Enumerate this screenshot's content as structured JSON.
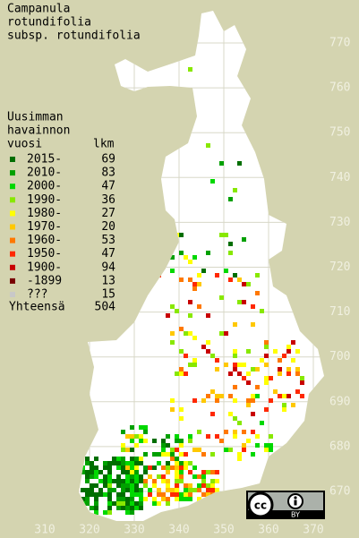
{
  "title": [
    "Campanula",
    "rotundifolia",
    "subsp. rotundifolia"
  ],
  "legend": {
    "heading": [
      "Uusimman",
      "havainnon",
      "vuosi"
    ],
    "count_header": "lkm",
    "items": [
      {
        "label": "2015-",
        "count": 69,
        "color": "#006e00"
      },
      {
        "label": "2010-",
        "count": 83,
        "color": "#00a000"
      },
      {
        "label": "2000-",
        "count": 47,
        "color": "#00d800"
      },
      {
        "label": "1990-",
        "count": 36,
        "color": "#88e800"
      },
      {
        "label": "1980-",
        "count": 27,
        "color": "#ffff00"
      },
      {
        "label": "1970-",
        "count": 20,
        "color": "#ffc800"
      },
      {
        "label": "1960-",
        "count": 53,
        "color": "#ff7800"
      },
      {
        "label": "1950-",
        "count": 47,
        "color": "#ff2800"
      },
      {
        "label": "1900-",
        "count": 94,
        "color": "#c80000"
      },
      {
        "label": "-1899",
        "count": 13,
        "color": "#780000"
      },
      {
        "label": "???",
        "count": 15,
        "color": "#c8c8c8"
      }
    ],
    "total": {
      "label": "Yhteensä",
      "count": 504
    }
  },
  "y_labels": [
    "770",
    "760",
    "750",
    "740",
    "730",
    "720",
    "710",
    "700",
    "690",
    "680",
    "670"
  ],
  "x_labels": [
    "310",
    "320",
    "330",
    "340",
    "350",
    "360",
    "370"
  ],
  "license": {
    "cc": "cc",
    "by": "BY"
  }
}
